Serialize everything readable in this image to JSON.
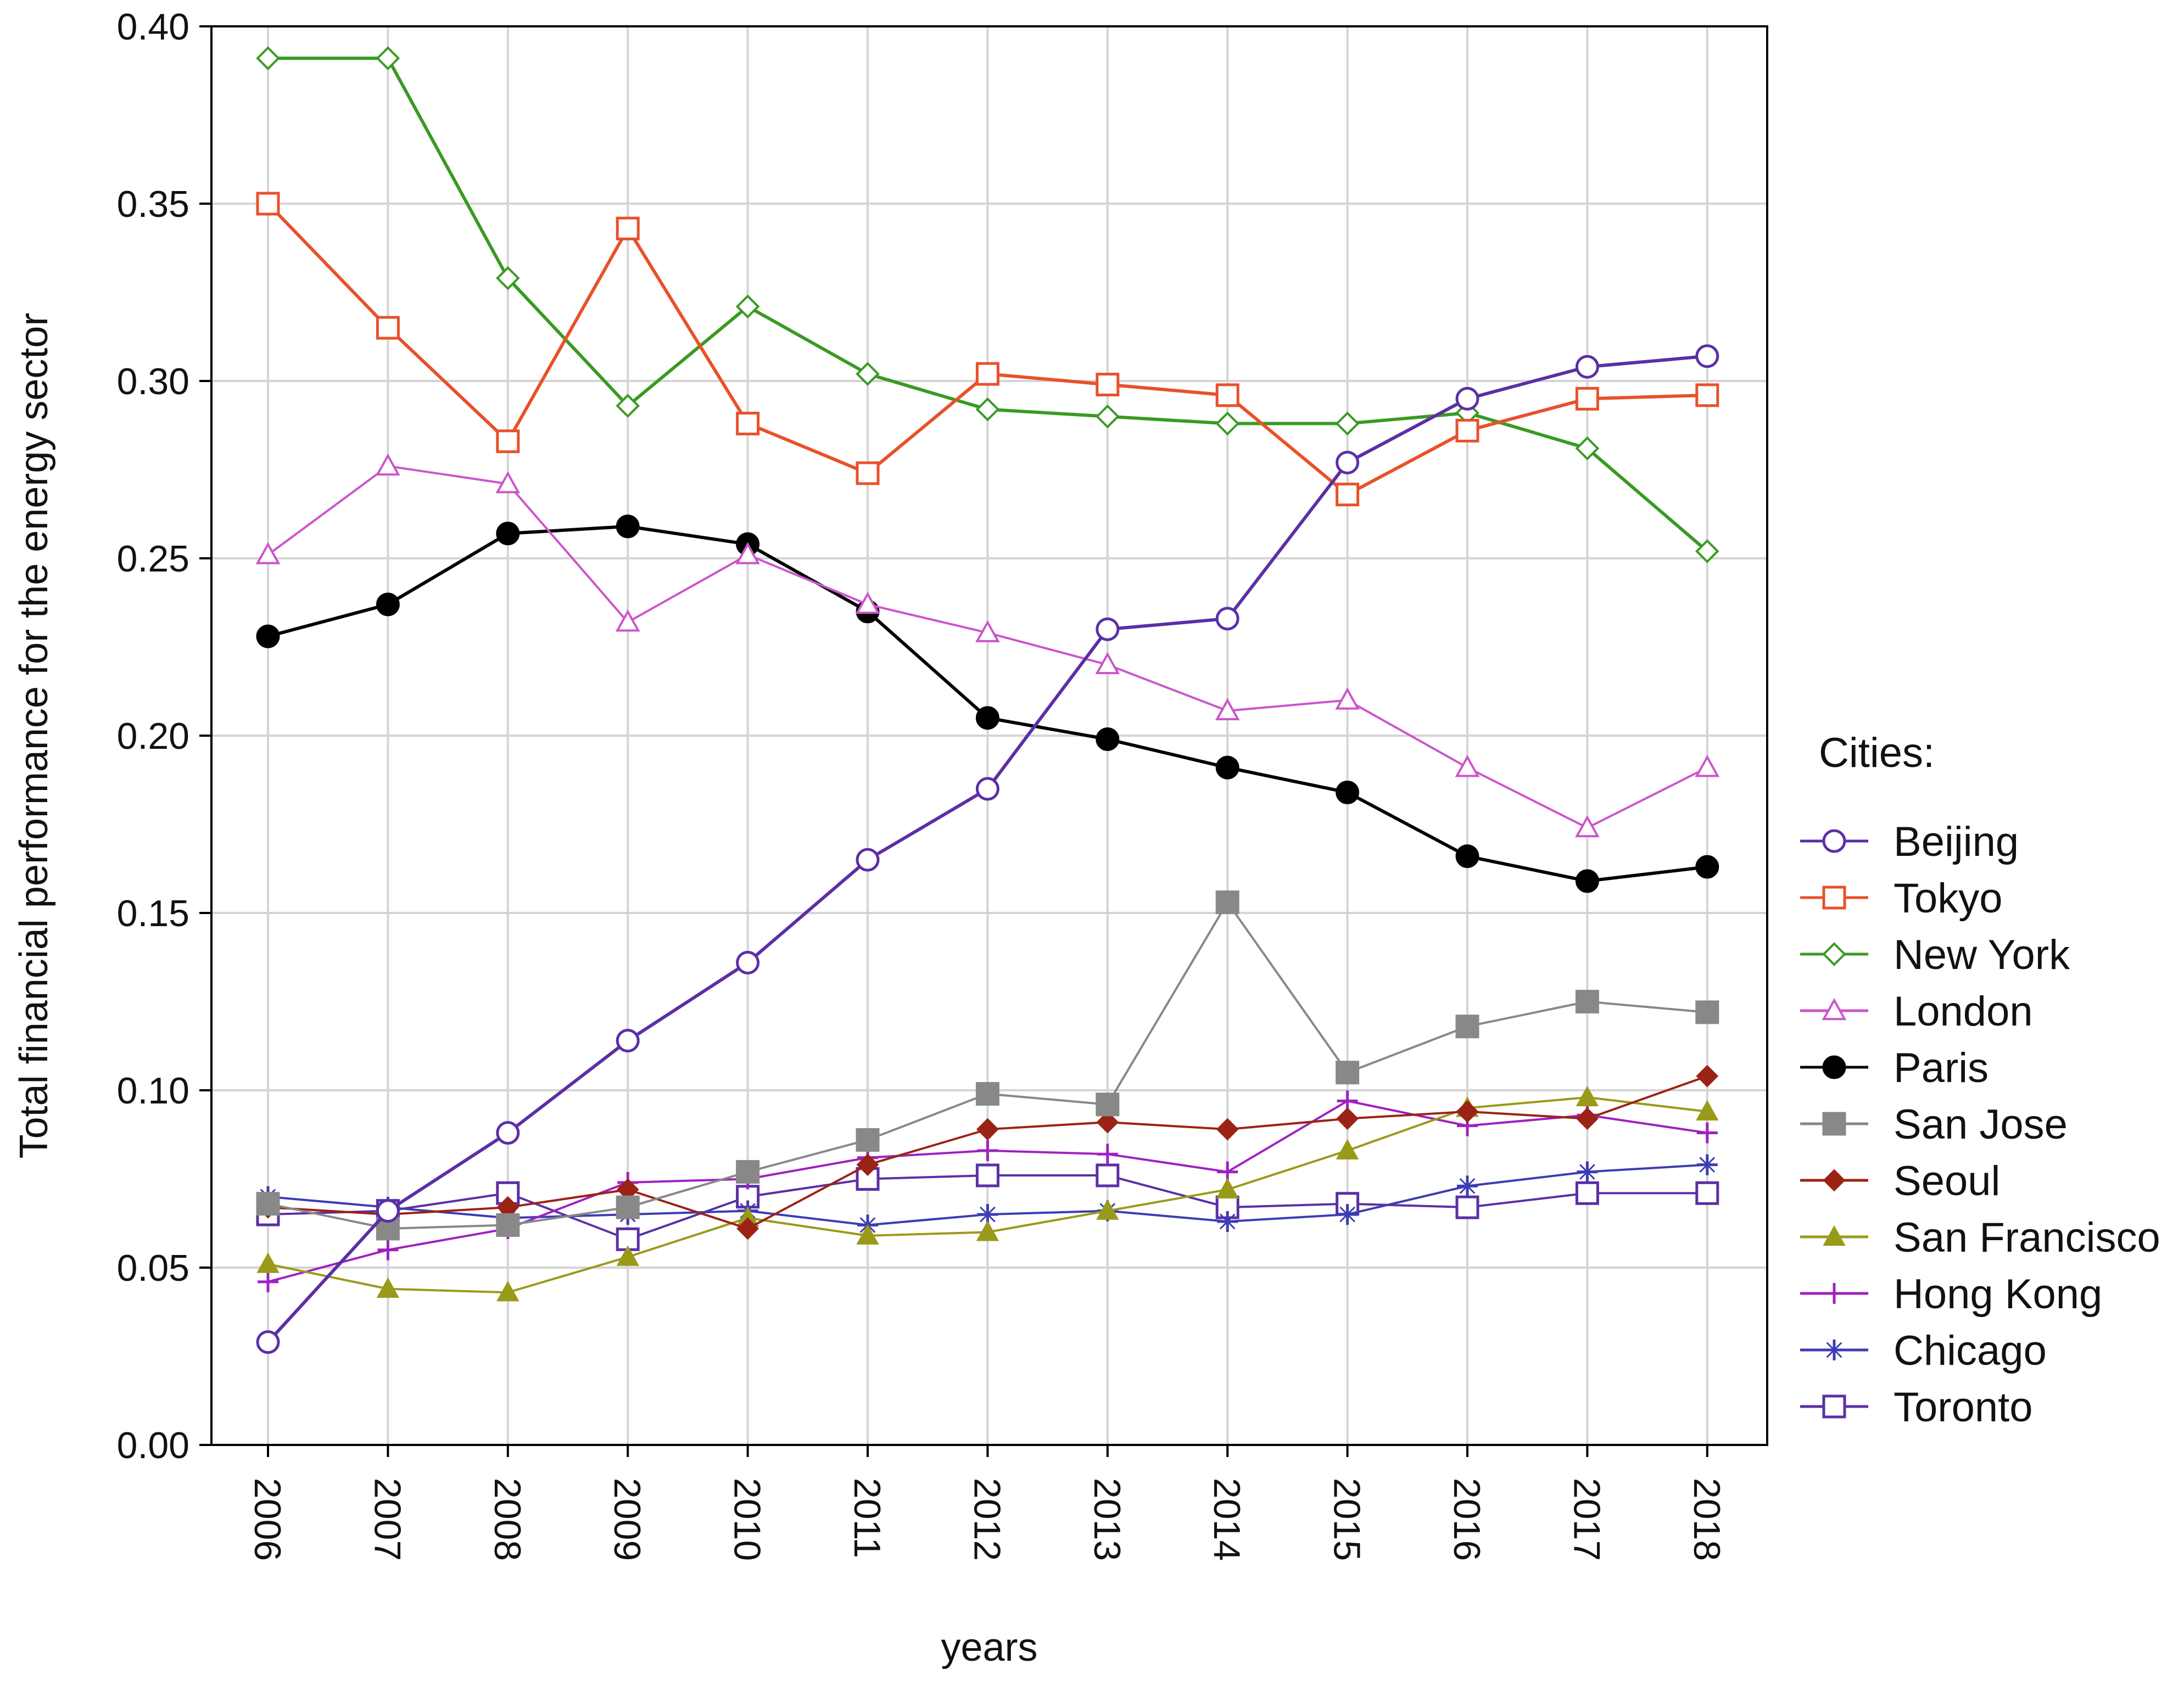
{
  "chart_data": {
    "type": "line",
    "title": "",
    "xlabel": "years",
    "ylabel": "Total financial performance for the energy sector",
    "ylim": [
      0.0,
      0.4
    ],
    "yticks": [
      "0.00",
      "0.05",
      "0.10",
      "0.15",
      "0.20",
      "0.25",
      "0.30",
      "0.35",
      "0.40"
    ],
    "grid": true,
    "legend_title": "Cities:",
    "legend_position": "right",
    "x": [
      "2006",
      "2007",
      "2008",
      "2009",
      "2010",
      "2011",
      "2012",
      "2013",
      "2014",
      "2015",
      "2016",
      "2017",
      "2018"
    ],
    "series": [
      {
        "name": "Beijing",
        "color": "#5b2fa5",
        "marker": "circle-open",
        "values": [
          0.029,
          0.066,
          0.088,
          0.114,
          0.136,
          0.165,
          0.185,
          0.23,
          0.233,
          0.277,
          0.295,
          0.304,
          0.307
        ]
      },
      {
        "name": "Tokyo",
        "color": "#e8512a",
        "marker": "square-open",
        "values": [
          0.35,
          0.315,
          0.283,
          0.343,
          0.288,
          0.274,
          0.302,
          0.299,
          0.296,
          0.268,
          0.286,
          0.295,
          0.296
        ]
      },
      {
        "name": "New York",
        "color": "#3a9a23",
        "marker": "diamond-open",
        "values": [
          0.391,
          0.391,
          0.329,
          0.293,
          0.321,
          0.302,
          0.292,
          0.29,
          0.288,
          0.288,
          0.291,
          0.281,
          0.252
        ]
      },
      {
        "name": "London",
        "color": "#cc55cc",
        "marker": "triangle-open",
        "values": [
          0.251,
          0.276,
          0.271,
          0.232,
          0.251,
          0.237,
          0.229,
          0.22,
          0.207,
          0.21,
          0.191,
          0.174,
          0.191
        ]
      },
      {
        "name": "Paris",
        "color": "#000000",
        "marker": "circle-filled",
        "values": [
          0.228,
          0.237,
          0.257,
          0.259,
          0.254,
          0.235,
          0.205,
          0.199,
          0.191,
          0.184,
          0.166,
          0.159,
          0.163
        ]
      },
      {
        "name": "San Jose",
        "color": "#888888",
        "marker": "square-filled",
        "values": [
          0.068,
          0.061,
          0.062,
          0.067,
          0.077,
          0.086,
          0.099,
          0.096,
          0.153,
          0.105,
          0.118,
          0.125,
          0.122
        ]
      },
      {
        "name": "Seoul",
        "color": "#9b2316",
        "marker": "diamond-filled",
        "values": [
          0.067,
          0.065,
          0.067,
          0.072,
          0.061,
          0.079,
          0.089,
          0.091,
          0.089,
          0.092,
          0.094,
          0.092,
          0.104
        ]
      },
      {
        "name": "San Francisco",
        "color": "#9a9a1a",
        "marker": "triangle-filled",
        "values": [
          0.051,
          0.044,
          0.043,
          0.053,
          0.064,
          0.059,
          0.06,
          0.066,
          0.072,
          0.083,
          0.095,
          0.098,
          0.094
        ]
      },
      {
        "name": "Hong Kong",
        "color": "#a020c0",
        "marker": "plus",
        "values": [
          0.046,
          0.055,
          0.061,
          0.074,
          0.075,
          0.081,
          0.083,
          0.082,
          0.077,
          0.097,
          0.09,
          0.093,
          0.088
        ]
      },
      {
        "name": "Chicago",
        "color": "#3c3cb4",
        "marker": "asterisk",
        "values": [
          0.07,
          0.067,
          0.064,
          0.065,
          0.066,
          0.062,
          0.065,
          0.066,
          0.063,
          0.065,
          0.073,
          0.077,
          0.079
        ]
      },
      {
        "name": "Toronto",
        "color": "#5b2fa5",
        "marker": "square-open",
        "values": [
          0.065,
          0.066,
          0.071,
          0.058,
          0.07,
          0.075,
          0.076,
          0.076,
          0.067,
          0.068,
          0.067,
          0.071,
          0.071
        ]
      }
    ]
  }
}
